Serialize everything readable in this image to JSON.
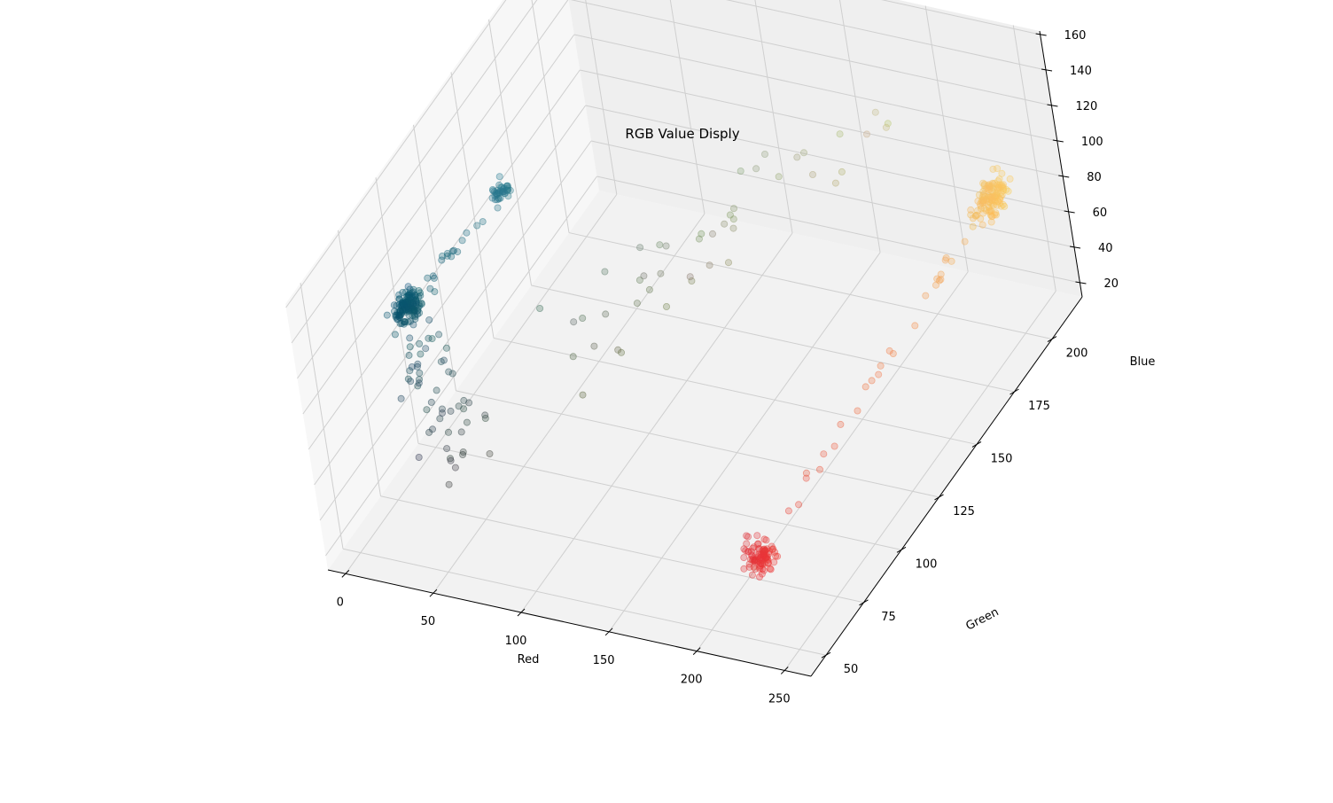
{
  "chart_data": {
    "type": "scatter",
    "projection": "3d",
    "title": "RGB Value Disply",
    "xlabel": "Red",
    "ylabel": "Green",
    "zlabel": "Blue",
    "xlim": [
      -10,
      265
    ],
    "ylim": [
      40,
      220
    ],
    "zlim": [
      12,
      162
    ],
    "x_ticks": [
      "0",
      "50",
      "100",
      "150",
      "200",
      "250"
    ],
    "y_ticks": [
      "50",
      "75",
      "100",
      "125",
      "150",
      "175",
      "200"
    ],
    "z_ticks": [
      "20",
      "40",
      "60",
      "80",
      "100",
      "120",
      "140",
      "160"
    ],
    "grid": true,
    "marker_alpha": 0.3,
    "note_colors": "each point is drawn in its own RGB colour",
    "clusters": [
      {
        "center": [
          10,
          88,
          108
        ],
        "spread": [
          4,
          4,
          4
        ],
        "count": 130,
        "color": "#0c4a62"
      },
      {
        "center": [
          40,
          120,
          140
        ],
        "spread": [
          3,
          3,
          3
        ],
        "count": 40,
        "color": "#1f7f8f"
      },
      {
        "center": [
          230,
          55,
          55
        ],
        "spread": [
          5,
          4,
          5
        ],
        "count": 90,
        "color": "#e03b37"
      },
      {
        "center": [
          248,
          195,
          95
        ],
        "spread": [
          4,
          6,
          6
        ],
        "count": 120,
        "color": "#f6c453"
      }
    ],
    "trails": [
      {
        "from": [
          10,
          88,
          108
        ],
        "to": [
          40,
          120,
          140
        ],
        "count": 22,
        "jitter": 2
      },
      {
        "from": [
          230,
          55,
          55
        ],
        "to": [
          248,
          195,
          95
        ],
        "count": 34,
        "jitter": 3
      },
      {
        "from": [
          10,
          88,
          108
        ],
        "to": [
          60,
          60,
          60
        ],
        "count": 60,
        "jitter": 10
      },
      {
        "from": [
          80,
          100,
          80
        ],
        "to": [
          200,
          190,
          140
        ],
        "count": 45,
        "jitter": 14
      }
    ]
  }
}
